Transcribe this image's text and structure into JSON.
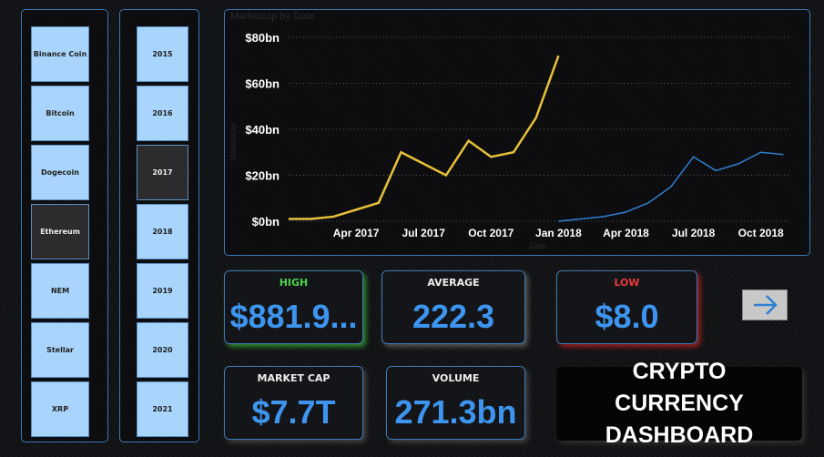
{
  "coin_slicer": {
    "items": [
      "Binance Coin",
      "Bitcoin",
      "Dogecoin",
      "Ethereum",
      "NEM",
      "Stellar",
      "XRP"
    ],
    "selected": 3
  },
  "year_slicer": {
    "items": [
      "2015",
      "2016",
      "2017",
      "2018",
      "2019",
      "2020",
      "2021"
    ],
    "selected": 2
  },
  "chart_data": {
    "type": "line",
    "title": "Marketcap by Date",
    "x_label": "Date",
    "y_label": "Marketcap",
    "x": [
      "Jan 2017",
      "Feb 2017",
      "Mar 2017",
      "Apr 2017",
      "May 2017",
      "Jun 2017",
      "Jul 2017",
      "Aug 2017",
      "Sep 2017",
      "Oct 2017",
      "Nov 2017",
      "Dec 2017",
      "Jan 2018",
      "Feb 2018",
      "Mar 2018",
      "Apr 2018",
      "May 2018",
      "Jun 2018",
      "Jul 2018",
      "Aug 2018",
      "Sep 2018",
      "Oct 2018",
      "Nov 2018"
    ],
    "xticks": [
      "Apr 2017",
      "Jul 2017",
      "Oct 2017",
      "Jan 2018",
      "Apr 2018",
      "Jul 2018",
      "Oct 2018"
    ],
    "series": [
      {
        "name": "2017",
        "color": "#e8c13a",
        "values": [
          1,
          1,
          2,
          5,
          8,
          30,
          25,
          20,
          35,
          28,
          30,
          45,
          72,
          null,
          null,
          null,
          null,
          null,
          null,
          null,
          null,
          null,
          null
        ]
      },
      {
        "name": "2018",
        "color": "#2f7fd1",
        "values": [
          null,
          null,
          null,
          null,
          null,
          null,
          null,
          null,
          null,
          null,
          null,
          null,
          0,
          1,
          2,
          4,
          8,
          15,
          28,
          22,
          25,
          30,
          29
        ]
      }
    ],
    "ylim": [
      0,
      80
    ],
    "yticks": [
      {
        "value": 0,
        "label": "$0bn"
      },
      {
        "value": 20,
        "label": "$20bn"
      },
      {
        "value": 40,
        "label": "$40bn"
      },
      {
        "value": 60,
        "label": "$60bn"
      },
      {
        "value": 80,
        "label": "$80bn"
      }
    ],
    "grid": true
  },
  "cards": {
    "high": {
      "label": "HIGH",
      "value": "$881.9..."
    },
    "average": {
      "label": "AVERAGE",
      "value": "222.3"
    },
    "low": {
      "label": "LOW",
      "value": "$8.0"
    },
    "market_cap": {
      "label": "MARKET CAP",
      "value": "$7.7T"
    },
    "volume": {
      "label": "VOLUME",
      "value": "271.3bn"
    }
  },
  "dashboard_title": "CRYPTO CURRENCY DASHBOARD"
}
